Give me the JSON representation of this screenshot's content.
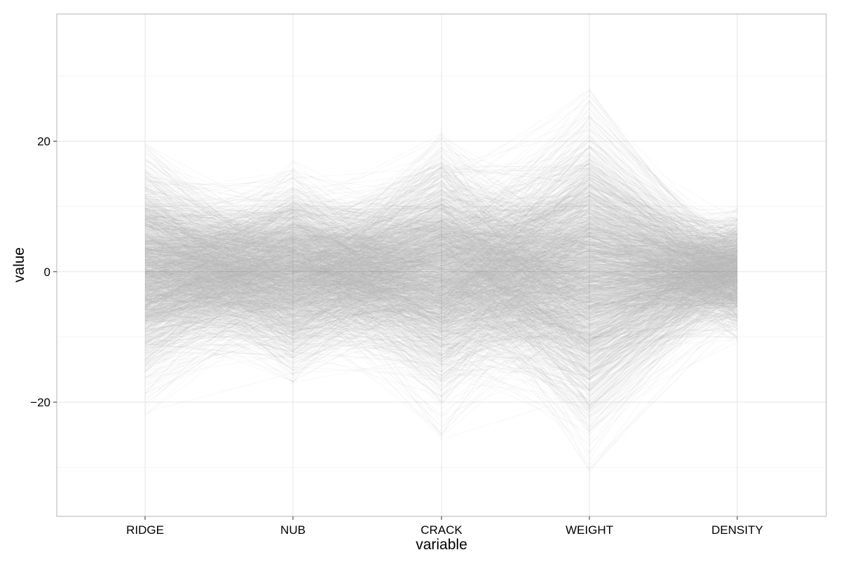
{
  "chart_data": {
    "type": "line",
    "subtype": "parallel-coordinates",
    "xlabel": "variable",
    "ylabel": "value",
    "categories": [
      "RIDGE",
      "NUB",
      "CRACK",
      "WEIGHT",
      "DENSITY"
    ],
    "y_ticks": [
      {
        "value": -20,
        "label": "−20"
      },
      {
        "value": 0,
        "label": "0"
      },
      {
        "value": 20,
        "label": "20"
      }
    ],
    "ylim": [
      -37.5,
      39.5
    ],
    "grid": true,
    "legend": "none",
    "line_color": "#000000",
    "line_alpha": 0.03,
    "series_count": 2000,
    "value_distribution": [
      {
        "variable": "RIDGE",
        "mean": 0,
        "sd": 7.0,
        "min": -24,
        "max": 20
      },
      {
        "variable": "NUB",
        "mean": 0,
        "sd": 6.0,
        "min": -17,
        "max": 17
      },
      {
        "variable": "CRACK",
        "mean": 0,
        "sd": 8.0,
        "min": -26,
        "max": 22
      },
      {
        "variable": "WEIGHT",
        "mean": 0,
        "sd": 10.0,
        "min": -31,
        "max": 28
      },
      {
        "variable": "DENSITY",
        "mean": 0,
        "sd": 4.0,
        "min": -12,
        "max": 10
      }
    ],
    "colors": {
      "background": "#ffffff",
      "grid_major": "#e5e5e5",
      "grid_minor": "#f2f2f2",
      "panel_border": "#b3b3b3",
      "text": "#000000"
    }
  }
}
